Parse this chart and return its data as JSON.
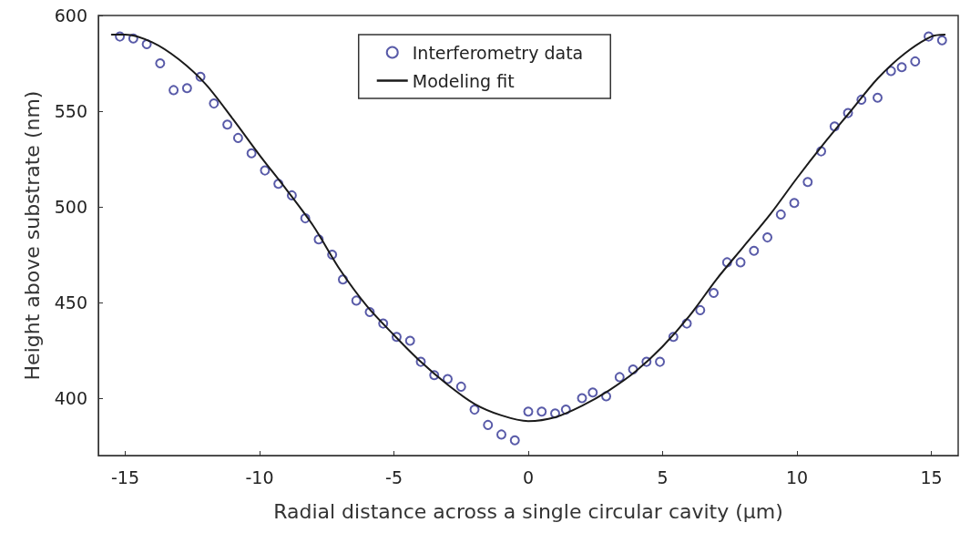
{
  "chart_data": {
    "type": "scatter",
    "xlabel": "Radial distance across a single circular cavity (µm)",
    "ylabel": "Height above substrate (nm)",
    "xlim": [
      -16,
      16
    ],
    "xticks": [
      -15,
      -10,
      -5,
      0,
      5,
      10,
      15
    ],
    "ylim": [
      370,
      600
    ],
    "yticks": [
      400,
      450,
      500,
      550,
      600
    ],
    "grid": false,
    "legend": "top",
    "marker": "circle",
    "series": [
      {
        "name": "Interferometry data",
        "color": "#2e3192",
        "x": [
          -15.2,
          -14.7,
          -14.2,
          -13.7,
          -13.2,
          -12.7,
          -12.2,
          -11.7,
          -11.2,
          -10.8,
          -10.3,
          -9.8,
          -9.3,
          -8.8,
          -8.3,
          -7.8,
          -7.3,
          -6.9,
          -6.4,
          -5.9,
          -5.4,
          -4.9,
          -4.4,
          -4.0,
          -3.5,
          -3.0,
          -2.5,
          -2.0,
          -1.5,
          -1.0,
          -0.5,
          0.0,
          0.5,
          1.0,
          1.4,
          2.0,
          2.4,
          2.9,
          3.4,
          3.9,
          4.4,
          4.9,
          5.4,
          5.9,
          6.4,
          6.9,
          7.4,
          7.9,
          8.4,
          8.9,
          9.4,
          9.9,
          10.4,
          10.9,
          11.4,
          11.9,
          12.4,
          13.0,
          13.5,
          13.9,
          14.4,
          14.9,
          15.4
        ],
        "values": [
          589,
          588,
          585,
          575,
          561,
          562,
          568,
          554,
          543,
          536,
          528,
          519,
          512,
          506,
          494,
          483,
          475,
          462,
          451,
          445,
          439,
          432,
          430,
          419,
          412,
          410,
          406,
          394,
          386,
          381,
          378,
          393,
          393,
          392,
          394,
          400,
          403,
          401,
          411,
          415,
          419,
          419,
          432,
          439,
          446,
          455,
          471,
          471,
          477,
          484,
          496,
          502,
          513,
          529,
          542,
          549,
          556,
          557,
          571,
          573,
          576,
          589,
          587
        ]
      },
      {
        "name": "Modeling fit",
        "type": "line",
        "color": "#1a1a1a",
        "marker": "none",
        "line_style": "solid",
        "x": [
          -15.5,
          -15,
          -14,
          -13,
          -12,
          -11,
          -10,
          -9,
          -8,
          -7,
          -6,
          -5,
          -4,
          -3,
          -2,
          -1,
          0,
          1,
          2,
          3,
          4,
          5,
          6,
          7,
          8,
          9,
          10,
          11,
          12,
          13,
          14,
          15,
          15.5
        ],
        "values": [
          590,
          590,
          586,
          577,
          564,
          546,
          527,
          509,
          490,
          467,
          448,
          433,
          419,
          407,
          397,
          391,
          388,
          390,
          396,
          404,
          414,
          427,
          443,
          462,
          479,
          496,
          515,
          533,
          550,
          567,
          580,
          589,
          590
        ]
      }
    ]
  }
}
